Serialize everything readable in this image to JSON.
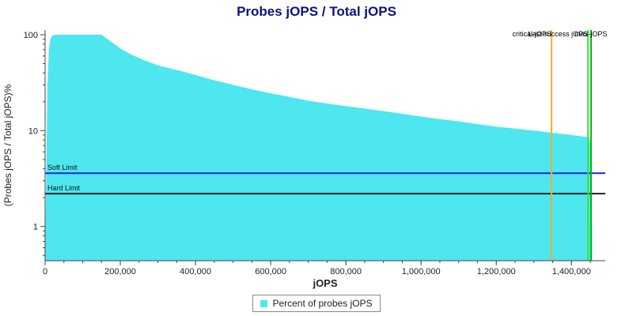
{
  "page": {
    "title": "Probes jOPS / Total jOPS"
  },
  "chart_data": {
    "type": "area",
    "title": "Probes jOPS / Total jOPS",
    "title_color": "#10107e",
    "xlabel": "jOPS",
    "ylabel": "(Probes jOPS / Total jOPS)%",
    "x_scale": "linear",
    "y_scale": "log",
    "grid": false,
    "xlim": [
      0,
      1490000
    ],
    "ylim": [
      0.44,
      112
    ],
    "x_ticks": [
      0,
      200000,
      400000,
      600000,
      800000,
      1000000,
      1200000,
      1400000
    ],
    "x_minor_tick_step": 50000,
    "y_ticks": [
      1,
      10,
      100
    ],
    "y_minor_ticks": [
      0.5,
      0.6,
      0.7,
      0.8,
      0.9,
      2,
      3,
      4,
      5,
      6,
      7,
      8,
      9,
      20,
      30,
      40,
      50,
      60,
      70,
      80,
      90
    ],
    "axis_color": "#444444",
    "tick_label_color": "#222222",
    "series": [
      {
        "name": "Percent of probes jOPS",
        "color": "#4ee7ef",
        "points": [
          [
            0,
            0.45
          ],
          [
            6000,
            30
          ],
          [
            10000,
            70
          ],
          [
            14000,
            90
          ],
          [
            18000,
            97
          ],
          [
            24000,
            100
          ],
          [
            150000,
            100
          ],
          [
            170000,
            88
          ],
          [
            200000,
            72
          ],
          [
            230000,
            62
          ],
          [
            260000,
            55
          ],
          [
            300000,
            48
          ],
          [
            350000,
            43
          ],
          [
            400000,
            38
          ],
          [
            450000,
            33.5
          ],
          [
            500000,
            30
          ],
          [
            550000,
            27
          ],
          [
            600000,
            24.5
          ],
          [
            650000,
            22.5
          ],
          [
            700000,
            20.5
          ],
          [
            750000,
            19.2
          ],
          [
            800000,
            18
          ],
          [
            850000,
            17
          ],
          [
            900000,
            16
          ],
          [
            950000,
            15
          ],
          [
            1000000,
            14
          ],
          [
            1050000,
            13.2
          ],
          [
            1100000,
            12.5
          ],
          [
            1150000,
            11.7
          ],
          [
            1200000,
            11
          ],
          [
            1250000,
            10.5
          ],
          [
            1300000,
            10
          ],
          [
            1350000,
            9.5
          ],
          [
            1400000,
            9
          ],
          [
            1430000,
            8.7
          ],
          [
            1448000,
            8.5
          ],
          [
            1452000,
            6
          ],
          [
            1454000,
            2
          ],
          [
            1455000,
            0.45
          ]
        ]
      }
    ],
    "h_lines": [
      {
        "label": "Soft Limit",
        "y": 3.6,
        "color": "#2222dd"
      },
      {
        "label": "Hard Limit",
        "y": 2.2,
        "color": "#222222"
      }
    ],
    "v_lines": [
      {
        "label": "critical-jOPS",
        "x": 1347000,
        "color": "#ffab2e",
        "label_anchor": "end"
      },
      {
        "label": "Last success jOPS",
        "x": 1444000,
        "color": "#44dd44",
        "label_anchor": "end"
      },
      {
        "label": "max-jOPS",
        "x": 1452000,
        "color": "#00bb00",
        "label_anchor": "middle"
      }
    ],
    "legend": {
      "position": "bottom",
      "items": [
        {
          "label": "Percent of probes jOPS",
          "color": "#4ee7ef"
        }
      ]
    }
  }
}
